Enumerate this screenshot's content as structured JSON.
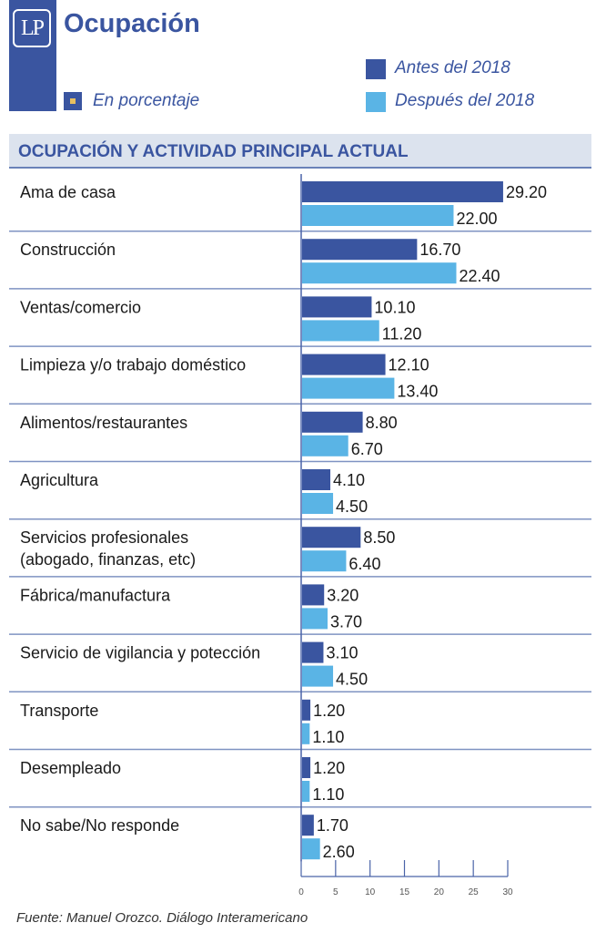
{
  "header": {
    "logo_text": "LP",
    "title": "Ocupación",
    "unit_label": "En porcentaje",
    "section_title": "OCUPACIÓN Y ACTIVIDAD PRINCIPAL ACTUAL"
  },
  "colors": {
    "brand": "#3a55a0",
    "series_before": "#3a55a0",
    "series_after": "#5ab4e5",
    "unit_marker": "#e8c060"
  },
  "legend": [
    {
      "label": "Antes del 2018",
      "color": "#3a55a0"
    },
    {
      "label": "Después del 2018",
      "color": "#5ab4e5"
    }
  ],
  "chart_data": {
    "type": "bar",
    "orientation": "horizontal",
    "title": "OCUPACIÓN Y ACTIVIDAD PRINCIPAL ACTUAL",
    "unit": "En porcentaje",
    "categories": [
      [
        "Ama de casa"
      ],
      [
        "Construcción"
      ],
      [
        "Ventas/comercio"
      ],
      [
        "Limpieza y/o trabajo doméstico"
      ],
      [
        "Alimentos/restaurantes"
      ],
      [
        "Agricultura"
      ],
      [
        "Servicios profesionales",
        "(abogado, finanzas, etc)"
      ],
      [
        "Fábrica/manufactura"
      ],
      [
        "Servicio de vigilancia y potección"
      ],
      [
        "Transporte"
      ],
      [
        "Desempleado"
      ],
      [
        "No sabe/No responde"
      ]
    ],
    "series": [
      {
        "name": "Antes del 2018",
        "values": [
          29.2,
          16.7,
          10.1,
          12.1,
          8.8,
          4.1,
          8.5,
          3.2,
          3.1,
          1.2,
          1.2,
          1.7
        ]
      },
      {
        "name": "Después del 2018",
        "values": [
          22.0,
          22.4,
          11.2,
          13.4,
          6.7,
          4.5,
          6.4,
          3.7,
          4.5,
          1.1,
          1.1,
          2.6
        ]
      }
    ],
    "xlim": [
      0,
      30
    ],
    "xticks": [
      0,
      5,
      10,
      15,
      20,
      25,
      30
    ],
    "value_format_decimals": 2,
    "xlabel": "",
    "ylabel": "",
    "legend_position": "top-right"
  },
  "footer": {
    "source": "Fuente: Manuel Orozco. Diálogo Interamericano"
  }
}
